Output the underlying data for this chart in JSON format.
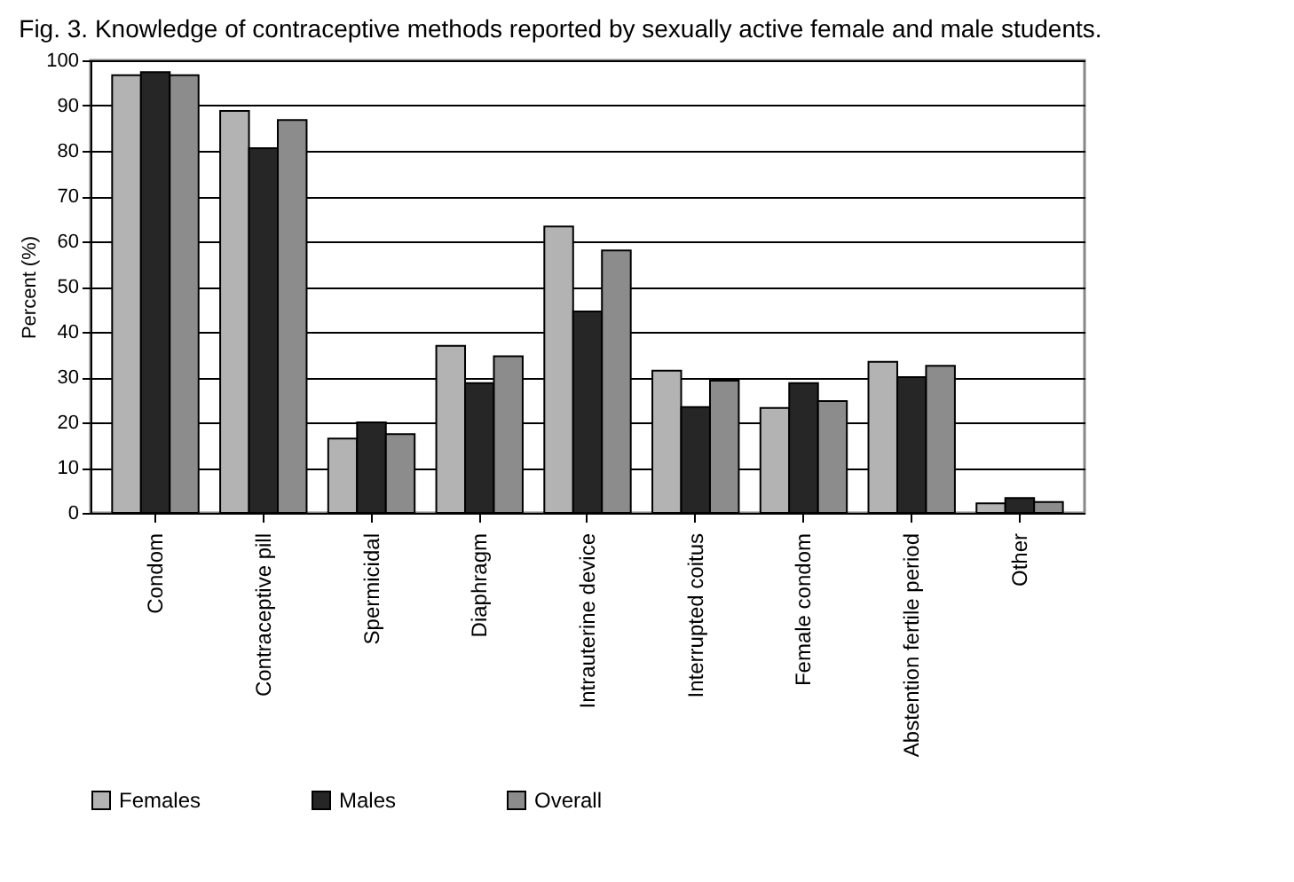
{
  "chart_data": {
    "type": "bar",
    "title": "Fig. 3. Knowledge of contraceptive methods reported by sexually active female and male students.",
    "ylabel": "Percent (%)",
    "categories": [
      "Condom",
      "Contraceptive pill",
      "Spermicidal",
      "Diaphragm",
      "Intrauterine device",
      "Interrupted coitus",
      "Female condom",
      "Abstention fertile period",
      "Other"
    ],
    "series": [
      {
        "name": "Females",
        "color": "#b3b3b3",
        "values": [
          96.7,
          88.8,
          16.4,
          36.9,
          63.3,
          31.4,
          23.2,
          33.4,
          2.1
        ]
      },
      {
        "name": "Males",
        "color": "#262626",
        "values": [
          97.4,
          80.6,
          20,
          28.7,
          44.5,
          23.4,
          28.7,
          30,
          3.3
        ]
      },
      {
        "name": "Overall",
        "color": "#8c8c8c",
        "values": [
          96.7,
          86.8,
          17.4,
          34.6,
          58,
          29.2,
          24.7,
          32.5,
          2.4
        ]
      }
    ],
    "ylim": [
      0,
      100
    ],
    "yticks": [
      0,
      10,
      20,
      30,
      40,
      50,
      60,
      70,
      80,
      90,
      100
    ],
    "grid": "y",
    "legend": "bottom"
  }
}
